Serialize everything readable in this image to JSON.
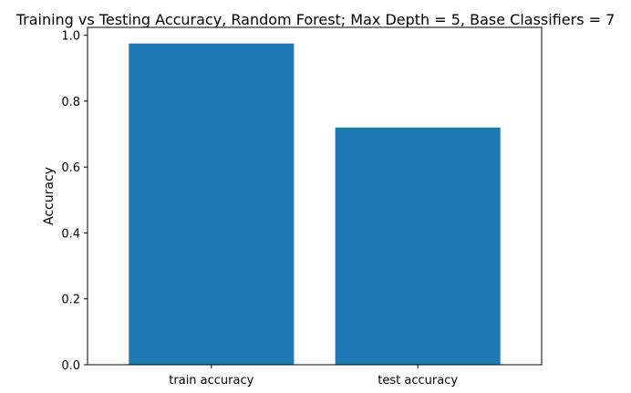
{
  "chart_data": {
    "type": "bar",
    "title": "Training vs Testing Accuracy, Random Forest; Max Depth = 5, Base Classifiers = 7",
    "xlabel": "",
    "ylabel": "Accuracy",
    "categories": [
      "train accuracy",
      "test accuracy"
    ],
    "values": [
      0.975,
      0.72
    ],
    "ylim": [
      0,
      1.0
    ],
    "yticks": [
      0.0,
      0.2,
      0.4,
      0.6,
      0.8,
      1.0
    ],
    "ytick_labels": [
      "0.0",
      "0.2",
      "0.4",
      "0.6",
      "0.8",
      "1.0"
    ],
    "bar_color": "#1f77b4",
    "grid": false
  }
}
